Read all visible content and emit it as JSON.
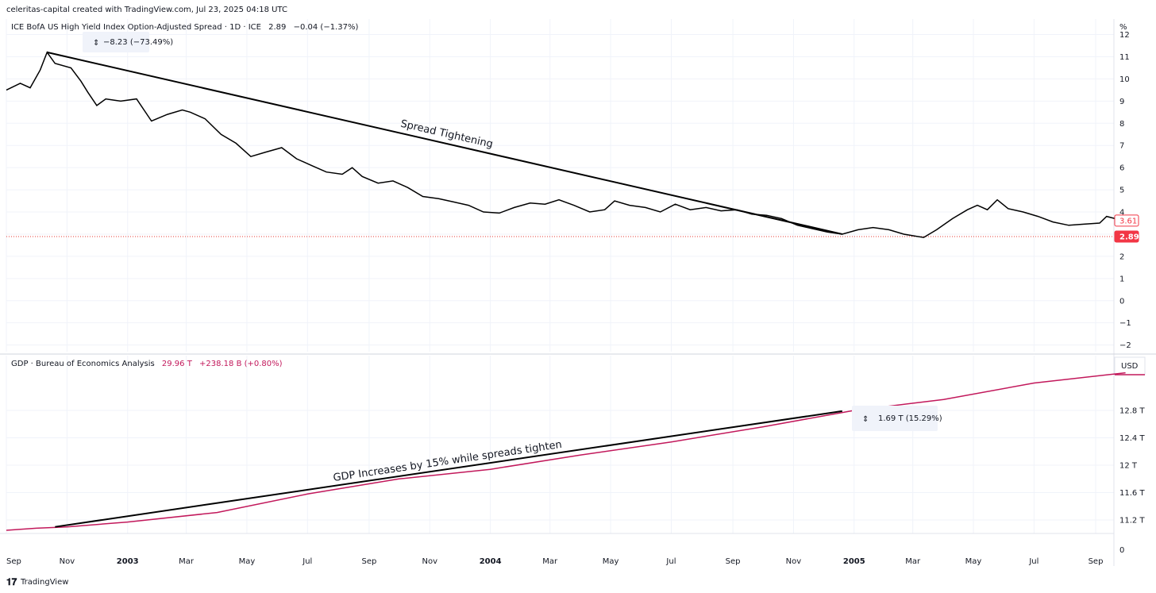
{
  "header": {
    "caption": "celeritas-capital created with TradingView.com, Jul 23, 2025 04:18 UTC"
  },
  "footer": {
    "logo_text": "TradingView"
  },
  "x_axis": {
    "labels": [
      {
        "label": "Sep",
        "date": "2002-09-01",
        "bold": false
      },
      {
        "label": "Nov",
        "date": "2002-11-01",
        "bold": false
      },
      {
        "label": "2003",
        "date": "2003-01-01",
        "bold": true
      },
      {
        "label": "Mar",
        "date": "2003-03-01",
        "bold": false
      },
      {
        "label": "May",
        "date": "2003-05-01",
        "bold": false
      },
      {
        "label": "Jul",
        "date": "2003-07-01",
        "bold": false
      },
      {
        "label": "Sep",
        "date": "2003-09-01",
        "bold": false
      },
      {
        "label": "Nov",
        "date": "2003-11-01",
        "bold": false
      },
      {
        "label": "2004",
        "date": "2004-01-01",
        "bold": true
      },
      {
        "label": "Mar",
        "date": "2004-03-01",
        "bold": false
      },
      {
        "label": "May",
        "date": "2004-05-01",
        "bold": false
      },
      {
        "label": "Jul",
        "date": "2004-07-01",
        "bold": false
      },
      {
        "label": "Sep",
        "date": "2004-09-01",
        "bold": false
      },
      {
        "label": "Nov",
        "date": "2004-11-01",
        "bold": false
      },
      {
        "label": "2005",
        "date": "2005-01-01",
        "bold": true
      },
      {
        "label": "Mar",
        "date": "2005-03-01",
        "bold": false
      },
      {
        "label": "May",
        "date": "2005-05-01",
        "bold": false
      },
      {
        "label": "Jul",
        "date": "2005-07-01",
        "bold": false
      },
      {
        "label": "Sep",
        "date": "2005-09-01",
        "bold": false
      }
    ]
  },
  "chart_data": [
    {
      "type": "line",
      "legend": {
        "name": "ICE BofA US High Yield Index Option-Adjusted Spread · 1D · ICE",
        "last": "2.89",
        "change": "−0.04 (−1.37%)"
      },
      "unit_label": "%",
      "ylim": [
        -2.3,
        12.7
      ],
      "y_ticks": [
        {
          "value": 12,
          "label": "12"
        },
        {
          "value": 11,
          "label": "11"
        },
        {
          "value": 10,
          "label": "10"
        },
        {
          "value": 9,
          "label": "9"
        },
        {
          "value": 8,
          "label": "8"
        },
        {
          "value": 7,
          "label": "7"
        },
        {
          "value": 6,
          "label": "6"
        },
        {
          "value": 5,
          "label": "5"
        },
        {
          "value": 4,
          "label": "4"
        },
        {
          "value": 3,
          "label": "3"
        },
        {
          "value": 2,
          "label": "2"
        },
        {
          "value": 1,
          "label": "1"
        },
        {
          "value": 0,
          "label": "0"
        },
        {
          "value": -1,
          "label": "−1"
        },
        {
          "value": -2,
          "label": "−2"
        }
      ],
      "grid": true,
      "series": [
        {
          "color": "#000000",
          "points": [
            [
              "2002-09-01",
              9.5
            ],
            [
              "2002-09-15",
              9.8
            ],
            [
              "2002-09-25",
              9.6
            ],
            [
              "2002-10-05",
              10.4
            ],
            [
              "2002-10-12",
              11.2
            ],
            [
              "2002-10-20",
              10.7
            ],
            [
              "2002-11-05",
              10.5
            ],
            [
              "2002-11-15",
              9.9
            ],
            [
              "2002-11-22",
              9.4
            ],
            [
              "2002-12-01",
              8.8
            ],
            [
              "2002-12-10",
              9.1
            ],
            [
              "2002-12-25",
              9.0
            ],
            [
              "2003-01-10",
              9.1
            ],
            [
              "2003-01-25",
              8.1
            ],
            [
              "2003-02-10",
              8.4
            ],
            [
              "2003-02-25",
              8.6
            ],
            [
              "2003-03-05",
              8.5
            ],
            [
              "2003-03-20",
              8.2
            ],
            [
              "2003-04-05",
              7.5
            ],
            [
              "2003-04-20",
              7.1
            ],
            [
              "2003-05-05",
              6.5
            ],
            [
              "2003-05-20",
              6.7
            ],
            [
              "2003-06-05",
              6.9
            ],
            [
              "2003-06-20",
              6.4
            ],
            [
              "2003-07-05",
              6.1
            ],
            [
              "2003-07-20",
              5.8
            ],
            [
              "2003-08-05",
              5.7
            ],
            [
              "2003-08-15",
              6.0
            ],
            [
              "2003-08-25",
              5.6
            ],
            [
              "2003-09-10",
              5.3
            ],
            [
              "2003-09-25",
              5.4
            ],
            [
              "2003-10-10",
              5.1
            ],
            [
              "2003-10-25",
              4.7
            ],
            [
              "2003-11-10",
              4.6
            ],
            [
              "2003-11-25",
              4.45
            ],
            [
              "2003-12-10",
              4.3
            ],
            [
              "2003-12-25",
              4.0
            ],
            [
              "2004-01-10",
              3.95
            ],
            [
              "2004-01-25",
              4.2
            ],
            [
              "2004-02-10",
              4.4
            ],
            [
              "2004-02-25",
              4.35
            ],
            [
              "2004-03-10",
              4.55
            ],
            [
              "2004-03-25",
              4.3
            ],
            [
              "2004-04-10",
              4.0
            ],
            [
              "2004-04-25",
              4.1
            ],
            [
              "2004-05-05",
              4.5
            ],
            [
              "2004-05-20",
              4.3
            ],
            [
              "2004-06-05",
              4.2
            ],
            [
              "2004-06-20",
              4.0
            ],
            [
              "2004-07-05",
              4.35
            ],
            [
              "2004-07-20",
              4.1
            ],
            [
              "2004-08-05",
              4.2
            ],
            [
              "2004-08-20",
              4.05
            ],
            [
              "2004-09-05",
              4.1
            ],
            [
              "2004-09-20",
              3.9
            ],
            [
              "2004-10-05",
              3.85
            ],
            [
              "2004-10-20",
              3.7
            ],
            [
              "2004-11-05",
              3.4
            ],
            [
              "2004-11-20",
              3.25
            ],
            [
              "2004-12-05",
              3.1
            ],
            [
              "2004-12-20",
              3.0
            ],
            [
              "2005-01-05",
              3.2
            ],
            [
              "2005-01-20",
              3.3
            ],
            [
              "2005-02-05",
              3.2
            ],
            [
              "2005-02-20",
              3.0
            ],
            [
              "2005-03-05",
              2.9
            ],
            [
              "2005-03-12",
              2.85
            ],
            [
              "2005-03-25",
              3.2
            ],
            [
              "2005-04-10",
              3.7
            ],
            [
              "2005-04-25",
              4.1
            ],
            [
              "2005-05-05",
              4.3
            ],
            [
              "2005-05-15",
              4.1
            ],
            [
              "2005-05-25",
              4.55
            ],
            [
              "2005-06-05",
              4.15
            ],
            [
              "2005-06-20",
              4.0
            ],
            [
              "2005-07-05",
              3.8
            ],
            [
              "2005-07-20",
              3.55
            ],
            [
              "2005-08-05",
              3.4
            ],
            [
              "2005-08-20",
              3.45
            ],
            [
              "2005-09-05",
              3.5
            ],
            [
              "2005-09-12",
              3.8
            ],
            [
              "2005-09-25",
              3.65
            ]
          ]
        }
      ],
      "trendline": {
        "label": "Spread Tightening",
        "color": "#000000",
        "from": [
          "2002-10-12",
          11.2
        ],
        "to": [
          "2004-12-20",
          3.0
        ]
      },
      "measure": {
        "text": "−8.23 (−73.49%)"
      },
      "price_labels": [
        {
          "value": 3.61,
          "text": "3.61",
          "style": "outline"
        },
        {
          "value": 2.89,
          "text": "2.89",
          "style": "filled"
        }
      ],
      "price_line": {
        "value": 2.89,
        "color": "#e53935"
      },
      "colors": {
        "accent": "#f23645"
      }
    },
    {
      "type": "line",
      "legend": {
        "name": "GDP · Bureau of Economics Analysis",
        "last": "29.96 T",
        "change": "+238.18 B (+0.80%)"
      },
      "unit_label": "USD",
      "ylim": [
        11.05,
        13.6
      ],
      "y_ticks": [
        {
          "value": 12.8,
          "label": "12.8 T"
        },
        {
          "value": 12.4,
          "label": "12.4 T"
        },
        {
          "value": 12.0,
          "label": "12 T"
        },
        {
          "value": 11.6,
          "label": "11.6 T"
        },
        {
          "value": 11.2,
          "label": "11.2 T"
        }
      ],
      "extra_tick": {
        "label": "0"
      },
      "grid": true,
      "series": [
        {
          "color": "#c2185b",
          "points": [
            [
              "2002-09-01",
              11.05
            ],
            [
              "2002-10-01",
              11.08
            ],
            [
              "2002-11-01",
              11.1
            ],
            [
              "2003-01-01",
              11.17
            ],
            [
              "2003-04-01",
              11.31
            ],
            [
              "2003-07-01",
              11.58
            ],
            [
              "2003-10-01",
              11.8
            ],
            [
              "2004-01-01",
              11.94
            ],
            [
              "2004-04-01",
              12.15
            ],
            [
              "2004-07-01",
              12.34
            ],
            [
              "2004-10-01",
              12.56
            ],
            [
              "2005-01-01",
              12.8
            ],
            [
              "2005-04-01",
              12.96
            ],
            [
              "2005-07-01",
              13.2
            ],
            [
              "2005-10-01",
              13.35
            ]
          ]
        }
      ],
      "trendline": {
        "label": "GDP Increases by 15% while spreads tighten",
        "color": "#000000",
        "from": [
          "2002-10-20",
          11.1
        ],
        "to": [
          "2004-12-20",
          12.79
        ]
      },
      "measure": {
        "text": "1.69 T (15.29%)"
      },
      "colors": {
        "series": "#c2185b"
      }
    }
  ]
}
